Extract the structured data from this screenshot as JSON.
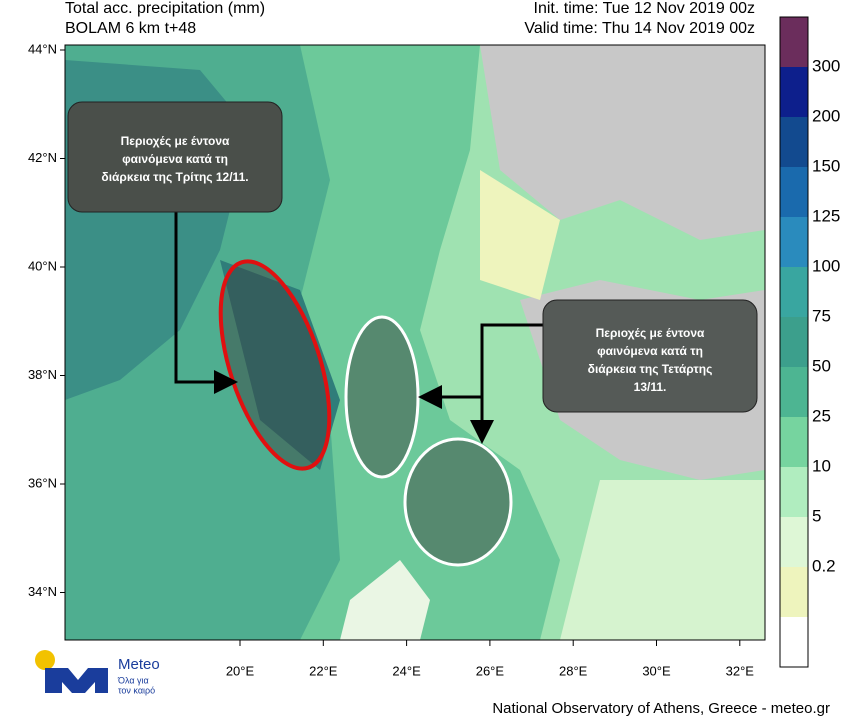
{
  "header": {
    "title": "Total acc. precipitation (mm)",
    "subtitle": "BOLAM 6 km t+48",
    "init_time": "Init. time: Tue 12 Nov 2019 00z",
    "valid_time": "Valid time: Thu 14 Nov 2019 00z"
  },
  "map": {
    "lat_labels": [
      "44°N",
      "42°N",
      "40°N",
      "38°N",
      "36°N",
      "34°N"
    ],
    "lon_labels": [
      "20°E",
      "22°E",
      "24°E",
      "26°E",
      "28°E",
      "30°E",
      "32°E"
    ]
  },
  "legend": {
    "levels": [
      "300",
      "200",
      "150",
      "125",
      "100",
      "75",
      "50",
      "25",
      "10",
      "5",
      "0.2"
    ],
    "colors": [
      "#6b2d5c",
      "#0d1f8c",
      "#124a8f",
      "#1a6aad",
      "#2a8bbd",
      "#39a6a0",
      "#3c9f8c",
      "#4db592",
      "#76d49f",
      "#b0edbf",
      "#def7d6",
      "#eef4bd",
      "#ffffff"
    ]
  },
  "annotations": [
    {
      "lines": [
        "Περιοχές με έντονα",
        "φαινόμενα κατά τη",
        "διάρκεια της Τρίτης 12/11."
      ]
    },
    {
      "lines": [
        "Περιοχές με έντονα",
        "φαινόμενα κατά τη",
        "διάρκεια της Τετάρτης",
        "13/11."
      ]
    }
  ],
  "logo": {
    "name": "Meteo",
    "tagline": [
      "Όλα για",
      "τον καιρό"
    ]
  },
  "footer": "National Observatory of Athens, Greece - meteo.gr"
}
